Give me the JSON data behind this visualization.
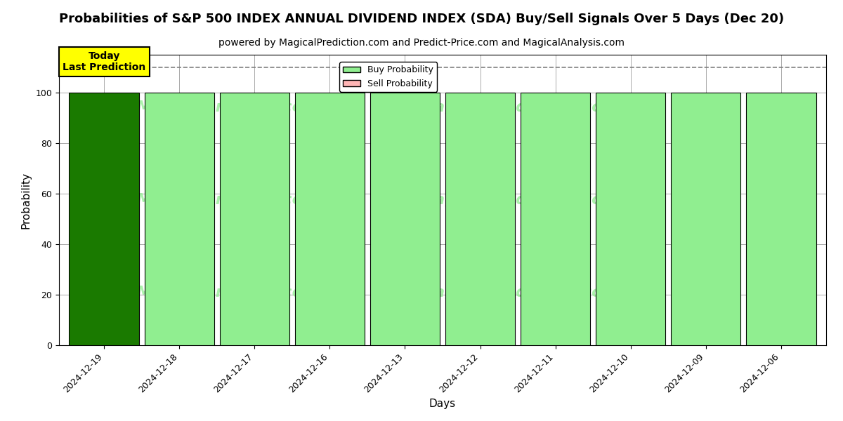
{
  "title": "Probabilities of S&P 500 INDEX ANNUAL DIVIDEND INDEX (SDA) Buy/Sell Signals Over 5 Days (Dec 20)",
  "subtitle": "powered by MagicalPrediction.com and Predict-Price.com and MagicalAnalysis.com",
  "xlabel": "Days",
  "ylabel": "Probability",
  "dates": [
    "2024-12-19",
    "2024-12-18",
    "2024-12-17",
    "2024-12-16",
    "2024-12-13",
    "2024-12-12",
    "2024-12-11",
    "2024-12-10",
    "2024-12-09",
    "2024-12-06"
  ],
  "buy_values": [
    100,
    100,
    100,
    100,
    100,
    100,
    100,
    100,
    100,
    100
  ],
  "sell_values": [
    0,
    0,
    0,
    0,
    0,
    0,
    0,
    0,
    0,
    0
  ],
  "today_idx": 0,
  "today_bar_color": "#1a7a00",
  "buy_bar_color": "#90ee90",
  "sell_bar_color": "#ffb6b6",
  "today_label": "Today\nLast Prediction",
  "today_label_bg": "#ffff00",
  "dashed_line_y": 110,
  "ylim": [
    0,
    115
  ],
  "yticks": [
    0,
    20,
    40,
    60,
    80,
    100
  ],
  "legend_buy_label": "Buy Probability",
  "legend_sell_label": "Sell Probability",
  "watermark_color": "#90ee90",
  "grid_color": "#aaaaaa",
  "bar_edge_color": "black",
  "bar_width": 0.93,
  "title_fontsize": 13,
  "subtitle_fontsize": 10,
  "axis_label_fontsize": 11,
  "tick_fontsize": 9
}
